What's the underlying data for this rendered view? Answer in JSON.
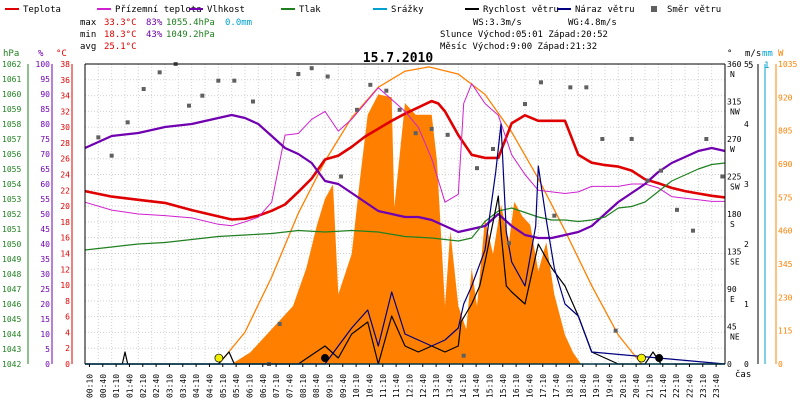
{
  "chart_data": {
    "type": "line",
    "title": "15.7.2010",
    "legend": {
      "placement": "top",
      "items": [
        {
          "label": "Teplota",
          "color": "#e00000",
          "style": "line"
        },
        {
          "label": "Přízemní teplota",
          "color": "#d020d0",
          "style": "line"
        },
        {
          "label": "Vlhkost",
          "color": "#7000b0",
          "style": "line"
        },
        {
          "label": "Tlak",
          "color": "#208020",
          "style": "line"
        },
        {
          "label": "Srážky",
          "color": "#00a0d0",
          "style": "line"
        },
        {
          "label": "Rychlost větru",
          "color": "#000000",
          "style": "line"
        },
        {
          "label": "Náraz větru",
          "color": "#000080",
          "style": "line"
        },
        {
          "label": "Směr větru",
          "color": "#606060",
          "style": "square"
        }
      ]
    },
    "stats": {
      "max_label": "max",
      "max_temp": "33.3°C",
      "max_hum": "83%",
      "max_pres": "1055.4hPa",
      "rain": "0.0mm",
      "min_label": "min",
      "min_temp": "18.3°C",
      "min_hum": "43%",
      "min_pres": "1049.2hPa",
      "avg_label": "avg",
      "avg_temp": "25.1°C",
      "ws": "WS:3.3m/s",
      "wg": "WG:4.8m/s",
      "sun": "Slunce Východ:05:01  Západ:20:52",
      "moon": "Měsíc  Východ:9:00   Západ:21:32"
    },
    "axes": {
      "hpa": {
        "label": "hPa",
        "color": "#208020",
        "min": 1042,
        "max": 1062,
        "ticks": [
          "1042",
          "1043",
          "1044",
          "1045",
          "1046",
          "1047",
          "1048",
          "1049",
          "1050",
          "1051",
          "1052",
          "1053",
          "1054",
          "1055",
          "1056",
          "1057",
          "1058",
          "1059",
          "1060",
          "1061",
          "1062"
        ]
      },
      "pct": {
        "label": "%",
        "color": "#7000b0",
        "min": 0,
        "max": 100,
        "ticks": [
          "0",
          "5",
          "10",
          "15",
          "20",
          "25",
          "30",
          "35",
          "40",
          "45",
          "50",
          "55",
          "60",
          "65",
          "70",
          "75",
          "80",
          "85",
          "90",
          "95",
          "100"
        ]
      },
      "degc": {
        "label": "°C",
        "color": "#e00000",
        "min": 0,
        "max": 38,
        "ticks": [
          "0",
          "2",
          "4",
          "6",
          "8",
          "10",
          "12",
          "14",
          "16",
          "18",
          "20",
          "22",
          "24",
          "26",
          "28",
          "30",
          "32",
          "34",
          "36",
          "38"
        ]
      },
      "dir": {
        "label": "°",
        "min": 0,
        "max": 360,
        "ticks": [
          "0",
          "45 NE",
          "90 E",
          "135 SE",
          "180 S",
          "225 SW",
          "270 W",
          "315 NW",
          "360 N"
        ]
      },
      "ms": {
        "label": "m/s",
        "min": 0,
        "max": 5,
        "ticks": [
          "0",
          "1",
          "2",
          "3",
          "4",
          "5"
        ],
        "top": "5"
      },
      "mm": {
        "label": "mm",
        "color": "#00a0d0",
        "top": "1"
      },
      "wm2": {
        "label": "W",
        "color": "#ff8000",
        "min": 0,
        "max": 1035,
        "ticks": [
          "0",
          "115",
          "230",
          "345",
          "460",
          "575",
          "690",
          "805",
          "920",
          "1035"
        ]
      },
      "x": {
        "label": "čas",
        "ticks": [
          "00:10",
          "00:40",
          "01:10",
          "01:40",
          "02:10",
          "02:40",
          "03:10",
          "03:40",
          "04:10",
          "04:40",
          "05:10",
          "05:40",
          "06:10",
          "06:40",
          "07:10",
          "07:40",
          "08:10",
          "08:40",
          "09:10",
          "09:40",
          "10:10",
          "10:40",
          "11:10",
          "11:40",
          "12:10",
          "12:40",
          "13:10",
          "13:40",
          "14:10",
          "14:40",
          "15:10",
          "15:40",
          "16:10",
          "16:40",
          "17:10",
          "17:40",
          "18:10",
          "18:40",
          "19:10",
          "19:40",
          "20:10",
          "20:40",
          "21:10",
          "21:40",
          "22:10",
          "22:40",
          "23:10",
          "23:40"
        ]
      }
    },
    "series": [
      {
        "name": "Teplota",
        "unit": "°C",
        "color": "#e00000",
        "x": [
          0,
          1,
          2,
          3,
          4,
          5,
          5.5,
          6,
          6.5,
          7,
          7.5,
          8,
          8.5,
          9,
          9.5,
          10,
          10.5,
          11,
          11.5,
          12,
          12.5,
          13,
          13.25,
          13.5,
          14,
          14.5,
          15,
          15.5,
          16,
          16.5,
          17,
          17.5,
          18,
          18.5,
          19,
          19.5,
          20,
          20.5,
          21,
          21.5,
          22,
          22.5,
          23,
          23.5,
          24
        ],
        "y": [
          21.9,
          21.2,
          20.8,
          20.4,
          19.5,
          18.7,
          18.3,
          18.4,
          18.8,
          19.4,
          20.2,
          21.8,
          23.5,
          25.9,
          26.4,
          27.5,
          28.8,
          29.8,
          30.8,
          31.7,
          32.5,
          33.3,
          33.0,
          32.0,
          29.0,
          26.5,
          26.1,
          26.1,
          30.5,
          31.5,
          30.8,
          30.8,
          30.8,
          26.5,
          25.5,
          25.2,
          25.0,
          24.5,
          23.4,
          22.9,
          22.3,
          21.9,
          21.6,
          21.3,
          21.1
        ]
      },
      {
        "name": "Přízemní teplota",
        "unit": "°C",
        "color": "#d020d0",
        "x": [
          0,
          1,
          2,
          3,
          4,
          5,
          5.5,
          6,
          6.5,
          7,
          7.5,
          8,
          8.5,
          9,
          9.5,
          10,
          10.5,
          11,
          11.5,
          12,
          12.5,
          13,
          13.5,
          14,
          14.2,
          14.5,
          15,
          15.5,
          16,
          16.5,
          17,
          17.5,
          18,
          18.5,
          19,
          19.5,
          20,
          20.5,
          21,
          21.5,
          22,
          22.5,
          23,
          23.5,
          24
        ],
        "y": [
          20.5,
          19.5,
          19.0,
          18.8,
          18.5,
          17.7,
          17.5,
          18.0,
          18.6,
          20.5,
          29.0,
          29.2,
          31.0,
          32.0,
          29.5,
          31.0,
          33.0,
          35.0,
          33.5,
          32.0,
          30.0,
          26.0,
          20.5,
          21.5,
          33.0,
          35.5,
          33.0,
          31.5,
          26.5,
          24.0,
          22.0,
          21.8,
          21.6,
          21.8,
          22.5,
          22.5,
          22.5,
          22.8,
          22.8,
          22.3,
          21.2,
          21.0,
          20.8,
          20.6,
          20.6
        ]
      },
      {
        "name": "Vlhkost",
        "unit": "%",
        "color": "#7000b0",
        "x": [
          0,
          1,
          2,
          3,
          4,
          5,
          5.5,
          6,
          6.5,
          7,
          7.5,
          8,
          8.5,
          9,
          9.5,
          10,
          10.5,
          11,
          11.5,
          12,
          12.5,
          13,
          13.5,
          14,
          14.5,
          15,
          15.5,
          16,
          16.5,
          17,
          17.5,
          18,
          18.5,
          19,
          19.5,
          20,
          20.5,
          21,
          21.5,
          22,
          22.5,
          23,
          23.5,
          24
        ],
        "y": [
          72,
          76,
          77,
          79,
          80,
          82,
          83,
          82,
          80,
          76,
          72,
          70,
          67,
          61,
          60,
          57,
          54,
          51,
          50,
          49,
          49,
          48,
          46,
          44,
          45,
          46,
          50,
          46,
          43,
          42,
          42,
          43,
          44,
          46,
          50,
          54,
          57,
          60,
          64,
          67,
          69,
          71,
          72,
          71
        ]
      },
      {
        "name": "Tlak",
        "unit": "hPa",
        "color": "#208020",
        "x": [
          0,
          1,
          2,
          3,
          4,
          5,
          6,
          7,
          8,
          9,
          10,
          11,
          12,
          13,
          14,
          14.5,
          15,
          15.5,
          16,
          16.5,
          17,
          17.5,
          18,
          18.5,
          19,
          19.5,
          20,
          20.5,
          21,
          21.5,
          22,
          22.5,
          23,
          23.5,
          24
        ],
        "y": [
          1049.6,
          1049.8,
          1050.0,
          1050.1,
          1050.3,
          1050.5,
          1050.6,
          1050.7,
          1050.9,
          1050.8,
          1050.9,
          1050.8,
          1050.5,
          1050.4,
          1050.2,
          1050.4,
          1051.5,
          1052.2,
          1052.4,
          1052.1,
          1051.8,
          1051.6,
          1051.6,
          1051.5,
          1051.6,
          1051.8,
          1052.4,
          1052.5,
          1052.8,
          1053.5,
          1054.2,
          1054.6,
          1055.0,
          1055.3,
          1055.4
        ]
      },
      {
        "name": "Rychlost větru",
        "unit": "m/s",
        "color": "#000000",
        "x": [
          0,
          1.4,
          1.5,
          1.6,
          5,
          5.4,
          5.6,
          6,
          8,
          9,
          9.5,
          10,
          10.6,
          11,
          11.5,
          12,
          12.5,
          13,
          13.5,
          14,
          14.1,
          14.5,
          14.8,
          15,
          15.5,
          15.6,
          15.8,
          16,
          16.5,
          17,
          17.5,
          18,
          18.5,
          19,
          19.5,
          20,
          21,
          21.3,
          21.6,
          24
        ],
        "y": [
          0,
          0,
          0.2,
          0,
          0,
          0.2,
          0,
          0,
          0,
          0.3,
          0.1,
          0.5,
          0.7,
          0,
          0.8,
          0.3,
          0.2,
          0.3,
          0.2,
          0.3,
          0.7,
          1.0,
          1.3,
          1.7,
          2.8,
          2.2,
          1.3,
          1.2,
          1.0,
          2.0,
          1.6,
          1.3,
          0.8,
          0.2,
          0.1,
          0,
          0,
          0.2,
          0,
          0
        ]
      },
      {
        "name": "Náraz větru",
        "unit": "m/s",
        "color": "#000080",
        "x": [
          0,
          9,
          9.5,
          10,
          10.6,
          11,
          11.5,
          12,
          12.5,
          13,
          13.5,
          14,
          14.2,
          14.5,
          15,
          15.4,
          15.6,
          15.8,
          16,
          16.5,
          16.9,
          17,
          17.3,
          17.6,
          18,
          18.5,
          19,
          24
        ],
        "y": [
          0,
          0,
          0.3,
          0.6,
          0.9,
          0.3,
          1.2,
          0.5,
          0.4,
          0.3,
          0.4,
          0.6,
          1.0,
          1.3,
          1.9,
          3.2,
          4.0,
          2.2,
          1.7,
          1.3,
          2.3,
          3.3,
          2.4,
          1.6,
          1.0,
          0.8,
          0.2,
          0
        ]
      },
      {
        "name": "Srážky",
        "unit": "mm",
        "color": "#00a0d0",
        "x": [
          0,
          24
        ],
        "y": [
          0,
          0
        ]
      }
    ],
    "solar": {
      "name": "Slunce",
      "unit": "W/m²",
      "color": "#ff8000",
      "theoretical_x": [
        5.02,
        6,
        7,
        8,
        9,
        10,
        11,
        12,
        12.9,
        14,
        15,
        16,
        17,
        18,
        19,
        20,
        20.87
      ],
      "theoretical_y": [
        0,
        110,
        300,
        520,
        700,
        850,
        955,
        1010,
        1025,
        1000,
        930,
        800,
        640,
        460,
        270,
        100,
        0
      ],
      "measured_x": [
        0,
        5.5,
        6.2,
        6.8,
        7.3,
        7.8,
        8.3,
        8.7,
        9.0,
        9.3,
        9.5,
        10.0,
        10.3,
        10.6,
        11.0,
        11.5,
        11.6,
        12.0,
        12.4,
        13.0,
        13.2,
        13.5,
        13.7,
        14.0,
        14.3,
        14.5,
        14.7,
        15.0,
        15.3,
        15.6,
        15.9,
        16.1,
        16.4,
        16.7,
        17.0,
        17.3,
        17.6,
        18.0,
        18.3,
        18.6,
        24
      ],
      "measured_y": [
        0,
        0,
        40,
        100,
        150,
        200,
        330,
        480,
        570,
        620,
        240,
        380,
        630,
        860,
        930,
        920,
        540,
        900,
        860,
        860,
        700,
        200,
        460,
        200,
        120,
        330,
        200,
        500,
        380,
        550,
        420,
        560,
        510,
        480,
        320,
        420,
        240,
        100,
        40,
        0,
        0
      ]
    },
    "wind_direction": {
      "unit": "°",
      "color": "#606060",
      "x": [
        0.5,
        1.0,
        1.6,
        2.2,
        2.8,
        3.4,
        3.9,
        4.4,
        5.0,
        5.6,
        6.3,
        6.9,
        7.3,
        8.0,
        8.5,
        9.1,
        9.6,
        10.2,
        10.7,
        11.3,
        11.8,
        12.4,
        13.0,
        13.6,
        14.2,
        14.7,
        15.3,
        15.9,
        16.5,
        17.1,
        17.6,
        18.2,
        18.8,
        19.4,
        19.9,
        20.5,
        21.1,
        21.6,
        22.2,
        22.8,
        23.3,
        23.9
      ],
      "y": [
        272,
        250,
        290,
        330,
        350,
        360,
        310,
        322,
        340,
        340,
        315,
        0,
        48,
        348,
        355,
        345,
        225,
        305,
        335,
        328,
        305,
        277,
        282,
        275,
        10,
        235,
        258,
        145,
        312,
        338,
        178,
        332,
        332,
        270,
        40,
        270,
        220,
        232,
        185,
        160,
        270,
        225
      ]
    },
    "annotations": [
      {
        "label": "sunrise",
        "x": 5.02,
        "y_deg": 0.5,
        "color": "#f0f000"
      },
      {
        "label": "sunset",
        "x": 20.87,
        "y_deg": 0.5,
        "color": "#f0f000"
      },
      {
        "label": "moonrise",
        "x": 9.0,
        "y_deg": 0.5,
        "color": "#000000"
      },
      {
        "label": "moonset",
        "x": 21.53,
        "y_deg": 0.5,
        "color": "#000000"
      }
    ],
    "grid": true,
    "xlim": [
      0,
      24
    ]
  }
}
